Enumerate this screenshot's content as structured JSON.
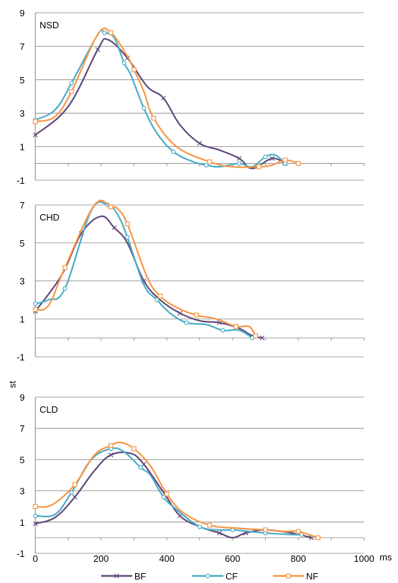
{
  "chart_data": [
    {
      "type": "line",
      "title": "NSD",
      "ylim": [
        -1,
        9
      ],
      "xlim": [
        0,
        1000
      ],
      "y_ticks": [
        "9",
        "7",
        "5",
        "3",
        "1",
        "-1"
      ],
      "grid": true,
      "series": [
        {
          "name": "BF",
          "x": [
            0,
            100,
            190,
            220,
            280,
            340,
            390,
            440,
            500,
            560,
            620,
            660,
            720,
            760
          ],
          "y": [
            1.7,
            3.4,
            6.8,
            7.4,
            6.3,
            4.6,
            3.9,
            2.3,
            1.2,
            0.8,
            0.3,
            -0.3,
            0.3,
            0.0
          ]
        },
        {
          "name": "CF",
          "x": [
            0,
            60,
            110,
            190,
            210,
            240,
            270,
            290,
            330,
            370,
            420,
            480,
            520,
            560,
            620,
            660,
            700,
            730,
            760
          ],
          "y": [
            2.6,
            3.2,
            4.8,
            7.7,
            7.8,
            7.5,
            6.0,
            5.3,
            3.3,
            1.8,
            0.7,
            0.1,
            -0.1,
            -0.2,
            0.0,
            -0.2,
            0.4,
            0.5,
            0.0
          ]
        },
        {
          "name": "NF",
          "x": [
            0,
            60,
            110,
            190,
            230,
            280,
            300,
            330,
            360,
            430,
            530,
            600,
            680,
            720,
            760,
            800
          ],
          "y": [
            2.5,
            2.8,
            4.3,
            7.7,
            7.8,
            6.4,
            5.6,
            4.3,
            2.7,
            1.0,
            0.1,
            -0.2,
            -0.2,
            -0.1,
            0.2,
            0.0
          ]
        }
      ]
    },
    {
      "type": "line",
      "title": "CHD",
      "ylim": [
        -1,
        7
      ],
      "xlim": [
        0,
        1000
      ],
      "y_ticks": [
        "7",
        "5",
        "3",
        "1",
        "-1"
      ],
      "grid": true,
      "series": [
        {
          "name": "BF",
          "x": [
            0,
            80,
            140,
            200,
            240,
            280,
            330,
            380,
            440,
            500,
            560,
            620,
            660,
            690
          ],
          "y": [
            1.4,
            3.3,
            5.5,
            6.4,
            5.8,
            5.0,
            3.0,
            2.0,
            1.3,
            0.9,
            0.8,
            0.5,
            0.1,
            0.0
          ]
        },
        {
          "name": "CF",
          "x": [
            0,
            40,
            90,
            170,
            220,
            250,
            280,
            330,
            370,
            410,
            460,
            520,
            570,
            620,
            660
          ],
          "y": [
            1.8,
            2.0,
            2.6,
            6.7,
            7.0,
            6.5,
            5.3,
            2.8,
            2.0,
            1.3,
            0.8,
            0.7,
            0.4,
            0.4,
            0.0
          ]
        },
        {
          "name": "NF",
          "x": [
            0,
            40,
            90,
            180,
            230,
            250,
            280,
            340,
            380,
            430,
            490,
            550,
            610,
            650,
            670
          ],
          "y": [
            1.5,
            1.7,
            3.7,
            7.0,
            6.9,
            6.8,
            6.0,
            3.2,
            2.2,
            1.6,
            1.2,
            1.0,
            0.6,
            0.6,
            0.1
          ]
        }
      ]
    },
    {
      "type": "line",
      "title": "CLD",
      "ylabel": "st",
      "xlabel": "ms",
      "ylim": [
        -1,
        9
      ],
      "xlim": [
        0,
        1000
      ],
      "y_ticks": [
        "9",
        "7",
        "5",
        "3",
        "1",
        "-1"
      ],
      "x_ticks": [
        "0",
        "200",
        "400",
        "600",
        "800",
        "1000"
      ],
      "grid": true,
      "series": [
        {
          "name": "BF",
          "x": [
            0,
            60,
            120,
            180,
            230,
            290,
            330,
            390,
            440,
            500,
            560,
            600,
            640,
            700,
            780,
            840
          ],
          "y": [
            0.9,
            1.3,
            2.6,
            4.3,
            5.3,
            5.4,
            4.7,
            2.9,
            1.4,
            0.7,
            0.3,
            0.0,
            0.3,
            0.5,
            0.3,
            0.0
          ]
        },
        {
          "name": "CF",
          "x": [
            0,
            60,
            110,
            170,
            230,
            270,
            320,
            350,
            390,
            430,
            500,
            560,
            600,
            650,
            700,
            780,
            810
          ],
          "y": [
            1.4,
            1.5,
            2.9,
            5.0,
            5.7,
            5.5,
            4.5,
            4.0,
            2.6,
            1.8,
            0.7,
            0.5,
            0.5,
            0.4,
            0.3,
            0.2,
            0.2
          ]
        },
        {
          "name": "NF",
          "x": [
            0,
            50,
            120,
            180,
            230,
            260,
            300,
            350,
            400,
            450,
            530,
            620,
            700,
            760,
            800,
            860
          ],
          "y": [
            2.0,
            2.1,
            3.4,
            5.3,
            5.9,
            6.1,
            5.7,
            4.6,
            2.8,
            1.6,
            0.8,
            0.6,
            0.5,
            0.4,
            0.4,
            0.0
          ]
        }
      ]
    }
  ],
  "legend": {
    "items": [
      {
        "label": "BF",
        "color": "#604a7b",
        "marker": "x"
      },
      {
        "label": "CF",
        "color": "#4bacc6",
        "marker": "circle"
      },
      {
        "label": "NF",
        "color": "#f79646",
        "marker": "square"
      }
    ]
  }
}
